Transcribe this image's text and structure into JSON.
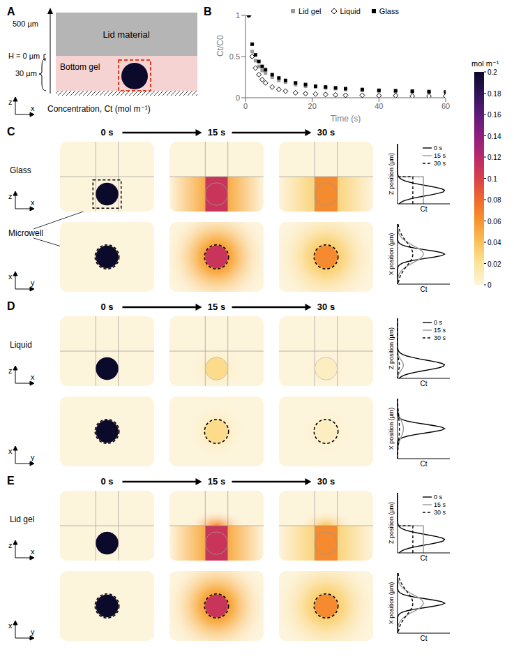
{
  "panel_a": {
    "label": "A",
    "lid": "Lid material",
    "gel": "Bottom gel",
    "height_top": "500 µm",
    "height_zero": "H = 0 µm",
    "gel_thickness": "30 µm",
    "axes": [
      "z",
      "x"
    ],
    "caption": "Concentration, Ct (mol m⁻¹)"
  },
  "chart_data": {
    "label": "B",
    "type": "scatter",
    "xlabel": "Time (s)",
    "ylabel": "Ct/C0",
    "x": [
      1,
      2,
      3,
      4,
      5,
      6,
      8,
      10,
      12,
      15,
      18,
      21,
      24,
      27,
      30,
      35,
      40,
      45,
      50,
      55,
      60
    ],
    "series": [
      {
        "name": "Lid gel",
        "color": "#9a9a9a",
        "marker": "square",
        "values": [
          1,
          0.56,
          0.45,
          0.38,
          0.33,
          0.3,
          0.25,
          0.21,
          0.19,
          0.16,
          0.14,
          0.13,
          0.12,
          0.11,
          0.1,
          0.09,
          0.08,
          0.075,
          0.07,
          0.065,
          0.06
        ]
      },
      {
        "name": "Liquid",
        "color": "#000000",
        "marker": "diamond",
        "values": [
          1,
          0.5,
          0.36,
          0.28,
          0.22,
          0.18,
          0.13,
          0.1,
          0.08,
          0.06,
          0.05,
          0.045,
          0.04,
          0.035,
          0.03,
          0.03,
          0.025,
          0.025,
          0.02,
          0.02,
          0.02
        ]
      },
      {
        "name": "Glass",
        "color": "#000000",
        "marker": "square",
        "values": [
          1,
          0.65,
          0.52,
          0.44,
          0.38,
          0.34,
          0.28,
          0.24,
          0.21,
          0.18,
          0.16,
          0.14,
          0.13,
          0.12,
          0.11,
          0.1,
          0.09,
          0.085,
          0.08,
          0.075,
          0.07
        ]
      }
    ],
    "xlim": [
      0,
      60
    ],
    "ylim": [
      0,
      1
    ],
    "xticks": [
      0,
      20,
      40,
      60
    ],
    "yticks": [
      0,
      0.5,
      1
    ],
    "legend": "top"
  },
  "times": [
    "0 s",
    "15 s",
    "30 s"
  ],
  "profile_axes": {
    "z": "Z position (µm)",
    "x": "X position (µm)",
    "c": "Ct"
  },
  "panels": [
    {
      "label": "C",
      "rows": [
        "Glass",
        "Microwell"
      ],
      "views": [
        [
          "z",
          "x"
        ],
        [
          "x",
          "y"
        ]
      ],
      "well_concentration": [
        0.2,
        0.11,
        0.065
      ]
    },
    {
      "label": "D",
      "rows": [
        "Liquid"
      ],
      "views": [
        [
          "z",
          "x"
        ],
        [
          "x",
          "y"
        ]
      ],
      "well_concentration": [
        0.2,
        0.025,
        0.008
      ]
    },
    {
      "label": "E",
      "rows": [
        "Lid gel"
      ],
      "views": [
        [
          "z",
          "x"
        ],
        [
          "x",
          "y"
        ]
      ],
      "well_concentration": [
        0.2,
        0.11,
        0.065
      ]
    }
  ],
  "colorbar": {
    "unit": "mol m⁻¹",
    "range": [
      0,
      0.2
    ],
    "ticks": [
      0,
      0.02,
      0.04,
      0.06,
      0.08,
      0.1,
      0.12,
      0.14,
      0.16,
      0.18,
      0.2
    ]
  }
}
